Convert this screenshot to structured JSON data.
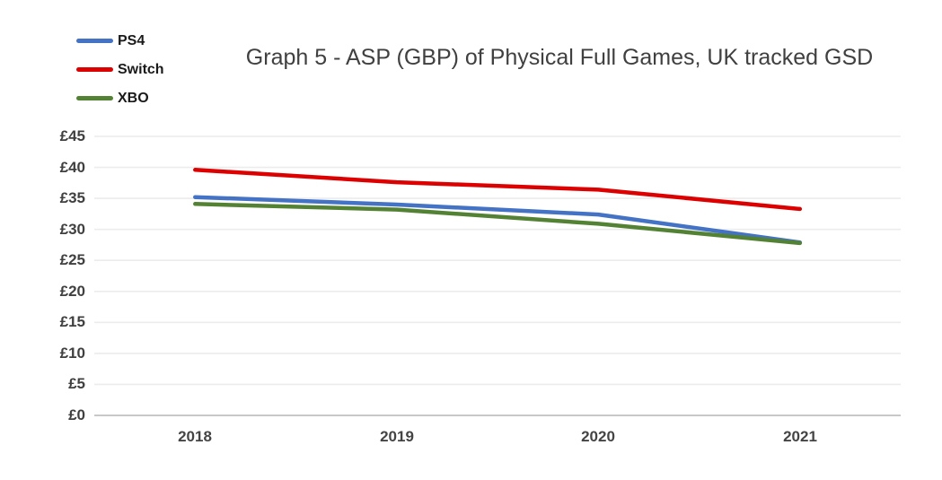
{
  "title": "Graph 5 - ASP (GBP) of Physical Full Games, UK tracked GSD",
  "legend": {
    "items": [
      {
        "label": "PS4",
        "color": "#4472C4"
      },
      {
        "label": "Switch",
        "color": "#DD0000"
      },
      {
        "label": "XBO",
        "color": "#548235"
      }
    ]
  },
  "chart_data": {
    "type": "line",
    "title": "Graph 5 - ASP (GBP) of Physical Full Games, UK tracked GSD",
    "categories": [
      "2018",
      "2019",
      "2020",
      "2021"
    ],
    "series": [
      {
        "name": "PS4",
        "color": "#4472C4",
        "values": [
          35.2,
          34.0,
          32.4,
          27.9
        ]
      },
      {
        "name": "Switch",
        "color": "#DD0000",
        "values": [
          39.6,
          37.6,
          36.4,
          33.3
        ]
      },
      {
        "name": "XBO",
        "color": "#548235",
        "values": [
          34.1,
          33.2,
          30.9,
          27.8
        ]
      }
    ],
    "xlabel": "",
    "ylabel": "",
    "ylim": [
      0,
      45
    ],
    "ytick_step": 5,
    "ytick_labels": [
      "£0",
      "£5",
      "£10",
      "£15",
      "£20",
      "£25",
      "£30",
      "£35",
      "£40",
      "£45"
    ],
    "grid": "horizontal",
    "legend_position": "top-left"
  },
  "colors": {
    "background": "#ffffff",
    "title_text": "#404040",
    "axis_text": "#404040",
    "legend_text": "#1a1a1a",
    "gridline": "#ececec",
    "axis_line": "#c8c8c8"
  }
}
